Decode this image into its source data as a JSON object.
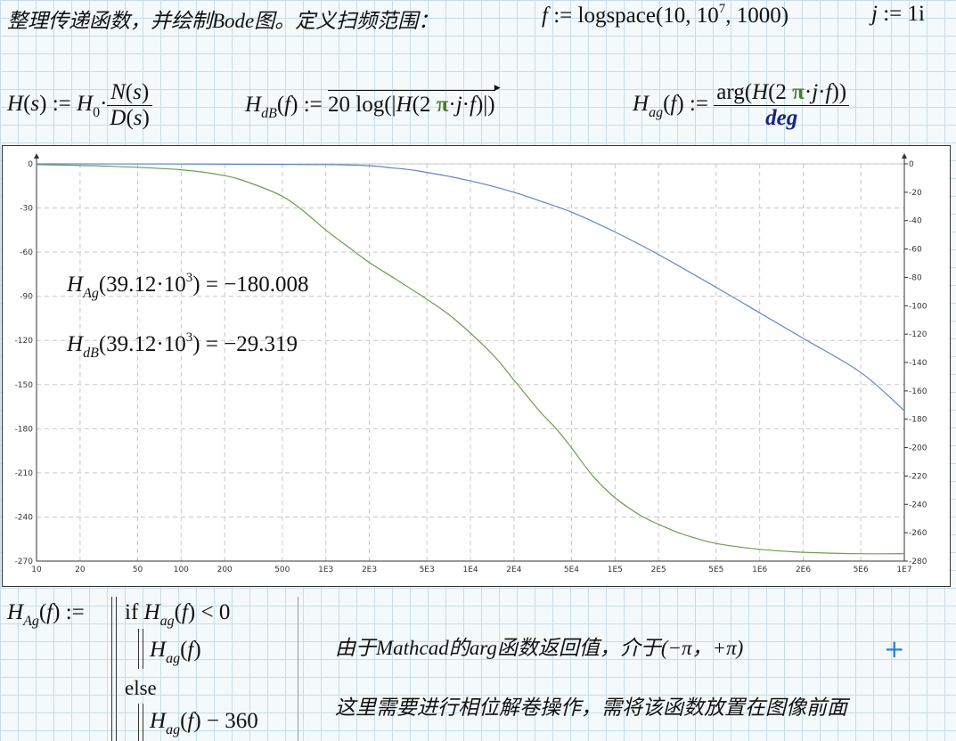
{
  "header": {
    "title": "整理传递函数，并绘制Bode图。定义扫频范围：",
    "f_def_lhs": "f",
    "f_def_rhs_a": "logspace",
    "f_def_rhs_b": "10",
    "f_def_rhs_c": "10",
    "f_def_rhs_c_exp": "7",
    "f_def_rhs_d": "1000",
    "j_def_lhs": "j",
    "j_def_rhs": "1i"
  },
  "defs": {
    "H_lhs": "H",
    "H_arg": "s",
    "H0": "H",
    "H0_sub": "0",
    "num": "N",
    "den": "D",
    "HdB_name": "H",
    "HdB_sub": "dB",
    "HdB_expr_a": "20",
    "HdB_expr_b": "log",
    "Hag_name": "H",
    "Hag_sub": "ag",
    "Hag_num_a": "arg",
    "Hag_num_pi": "π",
    "Hag_den": "deg"
  },
  "annotations": {
    "line1_name": "H",
    "line1_sub": "Ag",
    "line1_arg": "39.12",
    "line1_base": "10",
    "line1_exp": "3",
    "line1_value": "−180.008",
    "line2_name": "H",
    "line2_sub": "dB",
    "line2_arg": "39.12",
    "line2_base": "10",
    "line2_exp": "3",
    "line2_value": "−29.319"
  },
  "program": {
    "lhs_name": "H",
    "lhs_sub": "Ag",
    "if_kw": "if",
    "cond_name": "H",
    "cond_sub": "ag",
    "cond_rhs": "0",
    "then_name": "H",
    "then_sub": "ag",
    "else_kw": "else",
    "else_name": "H",
    "else_sub": "ag",
    "else_rhs": "360"
  },
  "notes": {
    "line1": "由于Mathcad的arg函数返回值，介于(−π，+π)",
    "line2": "这里需要进行相位解卷操作，需将该函数放置在图像前面"
  },
  "chart_data": {
    "type": "line",
    "x_scale": "log",
    "xlim": [
      10,
      10000000
    ],
    "x_ticks": [
      10,
      20,
      50,
      100,
      200,
      500,
      1000,
      2000,
      5000,
      10000,
      20000,
      50000,
      100000,
      200000,
      500000,
      1000000,
      2000000,
      5000000,
      10000000
    ],
    "x_tick_labels": [
      "10",
      "20",
      "50",
      "100",
      "200",
      "500",
      "1E3",
      "2E3",
      "5E3",
      "1E4",
      "2E4",
      "5E4",
      "1E5",
      "2E5",
      "5E5",
      "1E6",
      "2E6",
      "5E6",
      "1E7"
    ],
    "y_left_lim": [
      -270,
      0
    ],
    "y_left_ticks": [
      0,
      -30,
      -60,
      -90,
      -120,
      -150,
      -180,
      -210,
      -240,
      -270
    ],
    "y_right_lim": [
      -280,
      0
    ],
    "y_right_ticks": [
      0,
      -20,
      -40,
      -60,
      -80,
      -100,
      -120,
      -140,
      -160,
      -180,
      -200,
      -220,
      -240,
      -260,
      -280
    ],
    "grid": true,
    "series": [
      {
        "axis": "left",
        "color": "#6a9f4e",
        "x": [
          10,
          30,
          100,
          200,
          300,
          500,
          700,
          1000,
          1500,
          2000,
          3000,
          5000,
          7000,
          10000,
          15000,
          20000,
          30000,
          39120,
          50000,
          70000,
          100000,
          150000,
          200000,
          300000,
          500000,
          1000000,
          2000000,
          5000000,
          10000000
        ],
        "y": [
          -0.5,
          -1.5,
          -4,
          -8,
          -13,
          -22,
          -32,
          -45,
          -58,
          -67,
          -78,
          -92,
          -102,
          -115,
          -132,
          -147,
          -168,
          -180,
          -193,
          -212,
          -227,
          -239,
          -245,
          -252,
          -258,
          -262,
          -264,
          -265,
          -265
        ]
      },
      {
        "axis": "right",
        "color": "#5b86c9",
        "x": [
          10,
          1000,
          3000,
          5000,
          10000,
          20000,
          30000,
          50000,
          100000,
          200000,
          500000,
          1000000,
          2000000,
          5000000,
          10000000
        ],
        "y": [
          0,
          -0.5,
          -3,
          -6,
          -12,
          -20,
          -26,
          -34,
          -48,
          -64,
          -87,
          -105,
          -123,
          -147,
          -174
        ]
      }
    ]
  }
}
